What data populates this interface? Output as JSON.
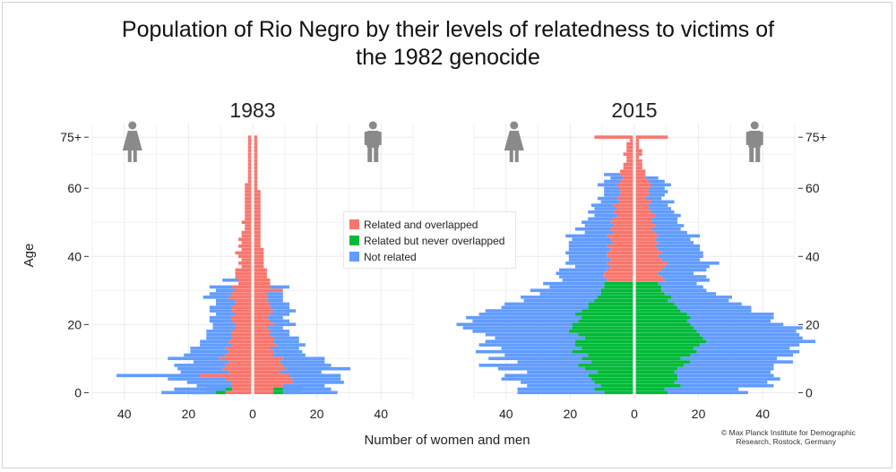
{
  "title_line1": "Population of Rio Negro by their levels of relatedness to victims of",
  "title_line2": "the 1982 genocide",
  "credit": "© Max Planck Institute for Demographic\n       Research, Rostock, Germany",
  "colors": {
    "related_overlapped": "#f8766d",
    "related_never": "#00ba38",
    "not_related": "#619cff"
  },
  "icons": [
    "female-person-icon",
    "male-person-icon"
  ],
  "chart_data": [
    {
      "type": "bar",
      "subtype": "population-pyramid",
      "panel_title": "1983",
      "xlabel": "Number of women and men",
      "ylabel": "Age",
      "xlim": [
        -50,
        50
      ],
      "ylim": [
        -2,
        79
      ],
      "x_ticks": [
        -40,
        -20,
        0,
        20,
        40
      ],
      "x_tick_labels": [
        "40",
        "20",
        "0",
        "20",
        "40"
      ],
      "y_ticks": [
        0,
        20,
        40,
        60,
        75
      ],
      "y_tick_labels": [
        "0",
        "20",
        "40",
        "60",
        "75+"
      ],
      "y_axis_side": "left",
      "series": [
        {
          "name": "Related and overlapped",
          "key": "ro"
        },
        {
          "name": "Related but never overlapped",
          "key": "rn"
        },
        {
          "name": "Not related",
          "key": "nr"
        }
      ],
      "female": {
        "ro": [
          8,
          6,
          6,
          6,
          8,
          16,
          7,
          9,
          8,
          7,
          10,
          8,
          7,
          8,
          6,
          7,
          6,
          6,
          6,
          5,
          5,
          6,
          6,
          5,
          6,
          6,
          5,
          5,
          7,
          6,
          5,
          6,
          4,
          4,
          5,
          5,
          5,
          3,
          4,
          3,
          4,
          5,
          3,
          4,
          3,
          4,
          3,
          3,
          2,
          2,
          3,
          2,
          2,
          2,
          2,
          2,
          2,
          2,
          2,
          2,
          2,
          2,
          1,
          1,
          1,
          1,
          1,
          1,
          1,
          1,
          1,
          1,
          1,
          1,
          1,
          1
        ],
        "rn": [
          3,
          2,
          0,
          0,
          0,
          0,
          0,
          0,
          0,
          0,
          0,
          0,
          0,
          0,
          0,
          0,
          0,
          0,
          0,
          0,
          0,
          0,
          0,
          0,
          0,
          0,
          0,
          0,
          0,
          0,
          0,
          0,
          0,
          0,
          0,
          0,
          0,
          0,
          0,
          0,
          0,
          0,
          0,
          0,
          0,
          0,
          0,
          0,
          0,
          0,
          0,
          0,
          0,
          0,
          0,
          0,
          0,
          0,
          0,
          0,
          0,
          0,
          0,
          0,
          0,
          0,
          0,
          0,
          0,
          0,
          0,
          0,
          0,
          0,
          0,
          0
        ],
        "nr": [
          6,
          8,
          5,
          8,
          10,
          10,
          8,
          5,
          8,
          4,
          6,
          5,
          5,
          3,
          4,
          2,
          2,
          2,
          2,
          2,
          2,
          1,
          1,
          1,
          1,
          1,
          1,
          1,
          1,
          1,
          1,
          1,
          0,
          1,
          0,
          0,
          0,
          0,
          0,
          0,
          0,
          0,
          0,
          0,
          0,
          0,
          0,
          0,
          0,
          0,
          0,
          0,
          0,
          0,
          0,
          0,
          0,
          0,
          0,
          0,
          0,
          0,
          0,
          0,
          0,
          0,
          0,
          0,
          0,
          0,
          0,
          0,
          0,
          0,
          0,
          0
        ]
      },
      "male": {
        "ro": [
          6,
          6,
          9,
          12,
          12,
          11,
          8,
          10,
          9,
          8,
          9,
          6,
          6,
          5,
          7,
          6,
          6,
          5,
          5,
          4,
          6,
          5,
          4,
          5,
          6,
          5,
          5,
          4,
          4,
          4,
          9,
          5,
          5,
          5,
          4,
          4,
          4,
          3,
          3,
          3,
          3,
          3,
          3,
          2,
          2,
          2,
          2,
          2,
          2,
          2,
          2,
          2,
          2,
          2,
          2,
          2,
          2,
          2,
          2,
          2,
          1,
          1,
          1,
          1,
          1,
          1,
          1,
          1,
          1,
          1,
          1,
          1,
          1,
          1,
          1,
          1
        ],
        "rn": [
          3,
          3,
          0,
          0,
          0,
          0,
          0,
          0,
          0,
          0,
          0,
          0,
          0,
          0,
          0,
          0,
          0,
          0,
          0,
          0,
          0,
          0,
          0,
          0,
          0,
          0,
          0,
          0,
          0,
          0,
          0,
          0,
          0,
          0,
          0,
          0,
          0,
          0,
          0,
          0,
          0,
          0,
          0,
          0,
          0,
          0,
          0,
          0,
          0,
          0,
          0,
          0,
          0,
          0,
          0,
          0,
          0,
          0,
          0,
          0,
          0,
          0,
          0,
          0,
          0,
          0,
          0,
          0,
          0,
          0,
          0,
          0,
          0,
          0,
          0,
          0
        ],
        "nr": [
          8,
          6,
          4,
          4,
          3,
          5,
          5,
          10,
          6,
          6,
          4,
          4,
          3,
          4,
          2,
          2,
          2,
          1,
          1,
          1,
          1,
          1,
          1,
          1,
          1,
          1,
          1,
          1,
          1,
          1,
          0,
          1,
          0,
          0,
          0,
          0,
          0,
          0,
          0,
          0,
          0,
          0,
          0,
          0,
          0,
          0,
          0,
          0,
          0,
          0,
          0,
          0,
          0,
          0,
          0,
          0,
          0,
          0,
          0,
          0,
          0,
          0,
          0,
          0,
          0,
          0,
          0,
          0,
          0,
          0,
          0,
          0,
          0,
          0,
          0,
          0
        ]
      }
    },
    {
      "type": "bar",
      "subtype": "population-pyramid",
      "panel_title": "2015",
      "xlabel": "Number of women and men",
      "ylabel": "Age",
      "xlim": [
        -50,
        50
      ],
      "ylim": [
        -2,
        79
      ],
      "x_ticks": [
        -40,
        -20,
        0,
        20,
        40
      ],
      "x_tick_labels": [
        "40",
        "20",
        "0",
        "20",
        "40"
      ],
      "y_ticks": [
        0,
        20,
        40,
        60,
        75
      ],
      "y_tick_labels": [
        "0",
        "20",
        "40",
        "60",
        "75+"
      ],
      "y_axis_side": "right",
      "series": [
        {
          "name": "Related and overlapped",
          "key": "ro"
        },
        {
          "name": "Related but never overlapped",
          "key": "rn"
        },
        {
          "name": "Not related",
          "key": "nr"
        }
      ],
      "female": {
        "ro": [
          0,
          0,
          0,
          0,
          0,
          0,
          0,
          0,
          0,
          0,
          0,
          0,
          0,
          0,
          0,
          0,
          0,
          0,
          0,
          0,
          0,
          0,
          0,
          0,
          0,
          0,
          0,
          0,
          0,
          0,
          0,
          0,
          0,
          8,
          9,
          9,
          8,
          7,
          8,
          7,
          8,
          8,
          7,
          8,
          6,
          7,
          8,
          6,
          7,
          6,
          7,
          6,
          5,
          6,
          5,
          6,
          4,
          5,
          4,
          4,
          4,
          5,
          4,
          3,
          4,
          4,
          3,
          3,
          2,
          2,
          3,
          2,
          2,
          2,
          1,
          12
        ],
        "rn": [
          9,
          12,
          10,
          12,
          13,
          14,
          11,
          15,
          17,
          13,
          16,
          14,
          19,
          16,
          18,
          18,
          15,
          17,
          20,
          19,
          19,
          17,
          16,
          18,
          16,
          14,
          14,
          12,
          11,
          10,
          10,
          9,
          9,
          0,
          0,
          0,
          0,
          0,
          0,
          0,
          0,
          0,
          0,
          0,
          0,
          0,
          0,
          0,
          0,
          0,
          0,
          0,
          0,
          0,
          0,
          0,
          0,
          0,
          0,
          0,
          0,
          0,
          0,
          0,
          0,
          0,
          0,
          0,
          0,
          0,
          0,
          0,
          0,
          0,
          0,
          0
        ],
        "nr": [
          18,
          12,
          13,
          11,
          15,
          12,
          11,
          12,
          14,
          10,
          13,
          12,
          11,
          9,
          12,
          10,
          13,
          12,
          10,
          15,
          17,
          16,
          20,
          12,
          14,
          13,
          12,
          10,
          13,
          9,
          12,
          8,
          10,
          6,
          5,
          6,
          7,
          4,
          5,
          6,
          4,
          5,
          6,
          4,
          8,
          5,
          5,
          3,
          4,
          3,
          2,
          2,
          2,
          2,
          2,
          1,
          2,
          1,
          1,
          1,
          1,
          1,
          1,
          1,
          1,
          0,
          0,
          0,
          0,
          0,
          0,
          0,
          0,
          0,
          0,
          0
        ]
      },
      "male": {
        "ro": [
          0,
          0,
          0,
          0,
          0,
          0,
          0,
          0,
          0,
          0,
          0,
          0,
          0,
          0,
          0,
          0,
          0,
          0,
          0,
          0,
          0,
          0,
          0,
          0,
          0,
          0,
          0,
          0,
          0,
          0,
          0,
          0,
          0,
          9,
          8,
          7,
          8,
          9,
          10,
          8,
          7,
          8,
          7,
          6,
          7,
          6,
          7,
          6,
          5,
          6,
          5,
          5,
          6,
          5,
          4,
          4,
          5,
          3,
          4,
          4,
          4,
          5,
          4,
          3,
          3,
          3,
          2,
          2,
          2,
          1,
          2,
          2,
          1,
          1,
          1,
          10
        ],
        "rn": [
          10,
          9,
          14,
          12,
          13,
          13,
          12,
          13,
          15,
          17,
          14,
          17,
          19,
          18,
          20,
          22,
          21,
          20,
          19,
          18,
          17,
          16,
          17,
          16,
          14,
          13,
          12,
          10,
          11,
          9,
          8,
          8,
          7,
          0,
          0,
          0,
          0,
          0,
          0,
          0,
          0,
          0,
          0,
          0,
          0,
          0,
          0,
          0,
          0,
          0,
          0,
          0,
          0,
          0,
          0,
          0,
          0,
          0,
          0,
          0,
          0,
          0,
          0,
          0,
          0,
          0,
          0,
          0,
          0,
          0,
          0,
          0,
          0,
          0,
          0,
          0
        ],
        "nr": [
          15,
          14,
          15,
          17,
          19,
          17,
          18,
          17,
          13,
          15,
          16,
          15,
          13,
          12,
          11,
          12,
          10,
          11,
          12,
          16,
          12,
          10,
          9,
          11,
          8,
          10,
          9,
          9,
          8,
          7,
          6,
          5,
          5,
          5,
          6,
          4,
          6,
          5,
          6,
          4,
          7,
          5,
          6,
          8,
          4,
          5,
          6,
          4,
          4,
          3,
          3,
          3,
          2,
          2,
          3,
          2,
          2,
          2,
          1,
          2,
          1,
          1,
          1,
          1,
          0,
          0,
          0,
          0,
          0,
          0,
          0,
          0,
          0,
          0,
          0,
          0
        ]
      }
    }
  ]
}
